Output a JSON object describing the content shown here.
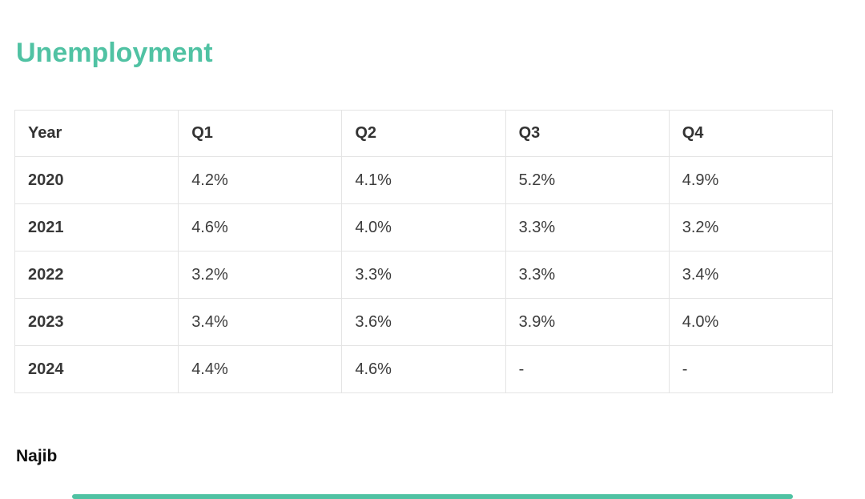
{
  "page": {
    "title": "Unemployment",
    "author": "Najib"
  },
  "colors": {
    "accent": "#50C2A3",
    "table_border": "#E4E4E4",
    "header_text": "#333333",
    "body_text": "#3C3C3C",
    "author_text": "#0F0F0F"
  },
  "table": {
    "columns": [
      "Year",
      "Q1",
      "Q2",
      "Q3",
      "Q4"
    ],
    "rows": [
      {
        "year": "2020",
        "values": [
          "4.2%",
          "4.1%",
          "5.2%",
          "4.9%"
        ]
      },
      {
        "year": "2021",
        "values": [
          "4.6%",
          "4.0%",
          "3.3%",
          "3.2%"
        ]
      },
      {
        "year": "2022",
        "values": [
          "3.2%",
          "3.3%",
          "3.3%",
          "3.4%"
        ]
      },
      {
        "year": "2023",
        "values": [
          "3.4%",
          "3.6%",
          "3.9%",
          "4.0%"
        ]
      },
      {
        "year": "2024",
        "values": [
          "4.4%",
          "4.6%",
          "-",
          "-"
        ]
      }
    ]
  },
  "chart_data": {
    "type": "table",
    "title": "Unemployment",
    "columns": [
      "Year",
      "Q1",
      "Q2",
      "Q3",
      "Q4"
    ],
    "rows": [
      [
        "2020",
        "4.2%",
        "4.1%",
        "5.2%",
        "4.9%"
      ],
      [
        "2021",
        "4.6%",
        "4.0%",
        "3.3%",
        "3.2%"
      ],
      [
        "2022",
        "3.2%",
        "3.3%",
        "3.3%",
        "3.4%"
      ],
      [
        "2023",
        "3.4%",
        "3.6%",
        "3.9%",
        "4.0%"
      ],
      [
        "2024",
        "4.4%",
        "4.6%",
        "-",
        "-"
      ]
    ]
  },
  "decor": {
    "bottom_bar": true,
    "bottom_bar_color": "#50C2A3"
  }
}
